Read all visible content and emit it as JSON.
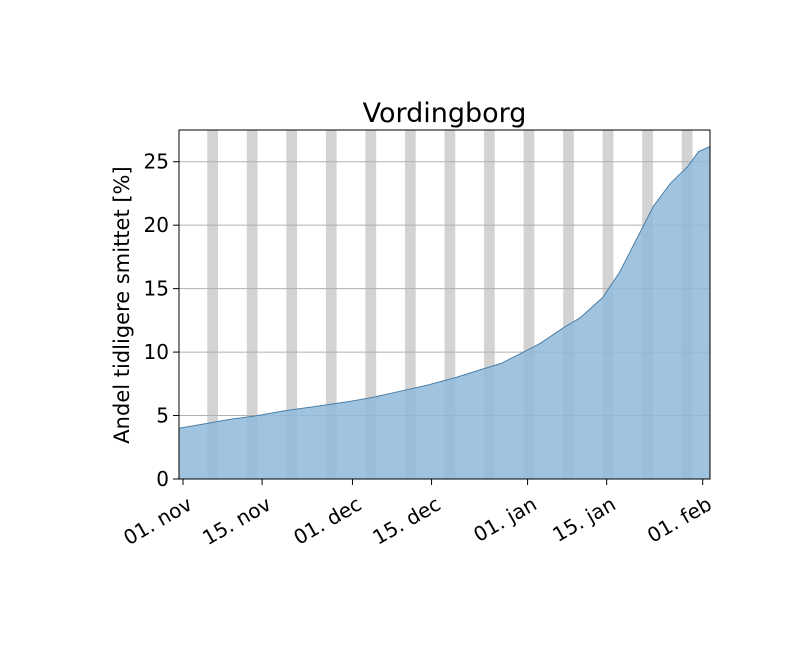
{
  "chart_data": {
    "type": "area",
    "title": "Vordingborg",
    "xlabel": "",
    "ylabel": "Andel tidligere smittet [%]",
    "x_start": "2021-11-01",
    "x_end": "2022-02-03",
    "xlim": [
      "2021-11-01",
      "2022-02-03"
    ],
    "ylim": [
      0,
      27.5
    ],
    "yticks": [
      "0",
      "5",
      "10",
      "15",
      "20",
      "25"
    ],
    "xticks": [
      {
        "date": "2021-11-01",
        "label": "01. nov"
      },
      {
        "date": "2021-11-15",
        "label": "15. nov"
      },
      {
        "date": "2021-12-01",
        "label": "01. dec"
      },
      {
        "date": "2021-12-15",
        "label": "15. dec"
      },
      {
        "date": "2022-01-01",
        "label": "01. jan"
      },
      {
        "date": "2022-01-15",
        "label": "15. jan"
      },
      {
        "date": "2022-02-01",
        "label": "01. feb"
      }
    ],
    "grid": "horizontal",
    "weekend_shading": true,
    "weekend_starts": [
      "2021-11-06",
      "2021-11-13",
      "2021-11-20",
      "2021-11-27",
      "2021-12-04",
      "2021-12-11",
      "2021-12-18",
      "2021-12-25",
      "2022-01-01",
      "2022-01-08",
      "2022-01-15",
      "2022-01-22",
      "2022-01-29"
    ],
    "fill_color": "#8fbadb",
    "line_color": "#4a7fa8",
    "weekend_color": "#d3d3d3",
    "series": [
      {
        "x": [
          "2021-11-01",
          "2021-11-05",
          "2021-11-10",
          "2021-11-15",
          "2021-11-20",
          "2021-11-25",
          "2021-12-01",
          "2021-12-05",
          "2021-12-10",
          "2021-12-15",
          "2021-12-20",
          "2021-12-25",
          "2021-12-28",
          "2022-01-01",
          "2022-01-04",
          "2022-01-08",
          "2022-01-11",
          "2022-01-15",
          "2022-01-18",
          "2022-01-21",
          "2022-01-24",
          "2022-01-27",
          "2022-01-30",
          "2022-02-01",
          "2022-02-03"
        ],
        "values": [
          4.0,
          4.3,
          4.7,
          5.0,
          5.4,
          5.7,
          6.1,
          6.4,
          6.9,
          7.4,
          8.0,
          8.7,
          9.1,
          10.0,
          10.7,
          11.9,
          12.7,
          14.3,
          16.3,
          18.9,
          21.5,
          23.3,
          24.6,
          25.8,
          26.2
        ]
      }
    ]
  }
}
